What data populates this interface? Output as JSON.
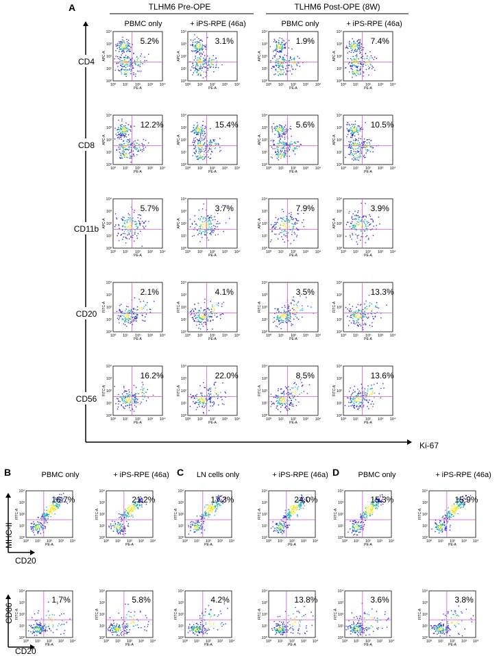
{
  "figure": {
    "panel_labels": [
      "A",
      "B",
      "C",
      "D"
    ],
    "panel_a": {
      "group_headers": [
        "TLHM6 Pre-OPE",
        "TLHM6 Post-OPE (8W)"
      ],
      "column_headers": [
        "PBMC only",
        "+ iPS-RPE (46a)",
        "PBMC only",
        "+ iPS-RPE (46a)"
      ],
      "row_labels": [
        "CD4",
        "CD8",
        "CD11b",
        "CD20",
        "CD56"
      ],
      "x_axis_marker": "Ki-67"
    },
    "panel_b": {
      "column_headers": [
        "PBMC only",
        "+ iPS-RPE (46a)"
      ],
      "y_marker_top": "MHC-II",
      "y_marker_bottom": "CD86",
      "x_marker": "CD20"
    },
    "panel_c": {
      "column_headers": [
        "LN cells only",
        "+ iPS-RPE (46a)"
      ]
    },
    "panel_d": {
      "column_headers": [
        "PBMC only",
        "+ iPS-RPE (46a)"
      ]
    },
    "tick_labels": [
      "10⁰",
      "10¹",
      "10²",
      "10³",
      "10⁴"
    ],
    "x_channel": "PE-A",
    "colors": {
      "gate": "#d94fd9",
      "dots_low": "#2b2bd9",
      "dots_mid": "#19b3b3",
      "dots_high": "#f2e61a"
    }
  },
  "chart_data": [
    {
      "type": "scatter",
      "panel": "A",
      "row": "CD4",
      "column": "PBMC only",
      "group": "TLHM6 Pre-OPE",
      "ylabel": "APC-A",
      "xlabel": "PE-A",
      "upper_right_percent": "5.2%"
    },
    {
      "type": "scatter",
      "panel": "A",
      "row": "CD4",
      "column": "+ iPS-RPE (46a)",
      "group": "TLHM6 Pre-OPE",
      "ylabel": "APC-A",
      "xlabel": "PE-A",
      "upper_right_percent": "3.1%"
    },
    {
      "type": "scatter",
      "panel": "A",
      "row": "CD4",
      "column": "PBMC only",
      "group": "TLHM6 Post-OPE (8W)",
      "ylabel": "APC-A",
      "xlabel": "PE-A",
      "upper_right_percent": "1.9%"
    },
    {
      "type": "scatter",
      "panel": "A",
      "row": "CD4",
      "column": "+ iPS-RPE (46a)",
      "group": "TLHM6 Post-OPE (8W)",
      "ylabel": "APC-A",
      "xlabel": "PE-A",
      "upper_right_percent": "7.4%"
    },
    {
      "type": "scatter",
      "panel": "A",
      "row": "CD8",
      "column": "PBMC only",
      "group": "TLHM6 Pre-OPE",
      "ylabel": "APC-A",
      "xlabel": "PE-A",
      "upper_right_percent": "12.2%"
    },
    {
      "type": "scatter",
      "panel": "A",
      "row": "CD8",
      "column": "+ iPS-RPE (46a)",
      "group": "TLHM6 Pre-OPE",
      "ylabel": "APC-A",
      "xlabel": "PE-A",
      "upper_right_percent": "15.4%"
    },
    {
      "type": "scatter",
      "panel": "A",
      "row": "CD8",
      "column": "PBMC only",
      "group": "TLHM6 Post-OPE (8W)",
      "ylabel": "APC-A",
      "xlabel": "PE-A",
      "upper_right_percent": "5.6%"
    },
    {
      "type": "scatter",
      "panel": "A",
      "row": "CD8",
      "column": "+ iPS-RPE (46a)",
      "group": "TLHM6 Post-OPE (8W)",
      "ylabel": "APC-A",
      "xlabel": "PE-A",
      "upper_right_percent": "10.5%"
    },
    {
      "type": "scatter",
      "panel": "A",
      "row": "CD11b",
      "column": "PBMC only",
      "group": "TLHM6 Pre-OPE",
      "ylabel": "APC-A",
      "xlabel": "PE-A",
      "upper_right_percent": "5.7%"
    },
    {
      "type": "scatter",
      "panel": "A",
      "row": "CD11b",
      "column": "+ iPS-RPE (46a)",
      "group": "TLHM6 Pre-OPE",
      "ylabel": "APC-A",
      "xlabel": "PE-A",
      "upper_right_percent": "3.7%"
    },
    {
      "type": "scatter",
      "panel": "A",
      "row": "CD11b",
      "column": "PBMC only",
      "group": "TLHM6 Post-OPE (8W)",
      "ylabel": "APC-A",
      "xlabel": "PE-A",
      "upper_right_percent": "7.9%"
    },
    {
      "type": "scatter",
      "panel": "A",
      "row": "CD11b",
      "column": "+ iPS-RPE (46a)",
      "group": "TLHM6 Post-OPE (8W)",
      "ylabel": "APC-A",
      "xlabel": "PE-A",
      "upper_right_percent": "3.9%"
    },
    {
      "type": "scatter",
      "panel": "A",
      "row": "CD20",
      "column": "PBMC only",
      "group": "TLHM6 Pre-OPE",
      "ylabel": "FITC-A",
      "xlabel": "PE-A",
      "upper_right_percent": "2.1%"
    },
    {
      "type": "scatter",
      "panel": "A",
      "row": "CD20",
      "column": "+ iPS-RPE (46a)",
      "group": "TLHM6 Pre-OPE",
      "ylabel": "FITC-A",
      "xlabel": "PE-A",
      "upper_right_percent": "4.1%"
    },
    {
      "type": "scatter",
      "panel": "A",
      "row": "CD20",
      "column": "PBMC only",
      "group": "TLHM6 Post-OPE (8W)",
      "ylabel": "FITC-A",
      "xlabel": "PE-A",
      "upper_right_percent": "3.5%"
    },
    {
      "type": "scatter",
      "panel": "A",
      "row": "CD20",
      "column": "+ iPS-RPE (46a)",
      "group": "TLHM6 Post-OPE (8W)",
      "ylabel": "FITC-A",
      "xlabel": "PE-A",
      "upper_right_percent": "13.3%"
    },
    {
      "type": "scatter",
      "panel": "A",
      "row": "CD56",
      "column": "PBMC only",
      "group": "TLHM6 Pre-OPE",
      "ylabel": "FITC-A",
      "xlabel": "PE-A",
      "upper_right_percent": "16.2%"
    },
    {
      "type": "scatter",
      "panel": "A",
      "row": "CD56",
      "column": "+ iPS-RPE (46a)",
      "group": "TLHM6 Pre-OPE",
      "ylabel": "FITC-A",
      "xlabel": "PE-A",
      "upper_right_percent": "22.0%"
    },
    {
      "type": "scatter",
      "panel": "A",
      "row": "CD56",
      "column": "PBMC only",
      "group": "TLHM6 Post-OPE (8W)",
      "ylabel": "FITC-A",
      "xlabel": "PE-A",
      "upper_right_percent": "8.5%"
    },
    {
      "type": "scatter",
      "panel": "A",
      "row": "CD56",
      "column": "+ iPS-RPE (46a)",
      "group": "TLHM6 Post-OPE (8W)",
      "ylabel": "FITC-A",
      "xlabel": "PE-A",
      "upper_right_percent": "13.6%"
    },
    {
      "type": "scatter",
      "panel": "B",
      "row": "MHC-II",
      "column": "PBMC only",
      "ylabel": "FITC-A",
      "xlabel": "PE-A",
      "upper_right_percent": "16.7%"
    },
    {
      "type": "scatter",
      "panel": "B",
      "row": "MHC-II",
      "column": "+ iPS-RPE (46a)",
      "ylabel": "FITC-A",
      "xlabel": "PE-A",
      "upper_right_percent": "21.2%"
    },
    {
      "type": "scatter",
      "panel": "C",
      "row": "MHC-II",
      "column": "LN cells only",
      "ylabel": "FITC-A",
      "xlabel": "PE-A",
      "upper_right_percent": "17.3%"
    },
    {
      "type": "scatter",
      "panel": "C",
      "row": "MHC-II",
      "column": "+ iPS-RPE (46a)",
      "ylabel": "FITC-A",
      "xlabel": "PE-A",
      "upper_right_percent": "24.0%"
    },
    {
      "type": "scatter",
      "panel": "D",
      "row": "MHC-II",
      "column": "PBMC only",
      "ylabel": "FITC-A",
      "xlabel": "PE-A",
      "upper_right_percent": "15.3%"
    },
    {
      "type": "scatter",
      "panel": "D",
      "row": "MHC-II",
      "column": "+ iPS-RPE (46a)",
      "ylabel": "FITC-A",
      "xlabel": "PE-A",
      "upper_right_percent": "15.9%"
    },
    {
      "type": "scatter",
      "panel": "B",
      "row": "CD86",
      "column": "PBMC only",
      "ylabel": "FITC-A",
      "xlabel": "PE-A",
      "upper_right_percent": "1.7%"
    },
    {
      "type": "scatter",
      "panel": "B",
      "row": "CD86",
      "column": "+ iPS-RPE (46a)",
      "ylabel": "FITC-A",
      "xlabel": "PE-A",
      "upper_right_percent": "5.8%"
    },
    {
      "type": "scatter",
      "panel": "C",
      "row": "CD86",
      "column": "LN cells only",
      "ylabel": "FITC-A",
      "xlabel": "PE-A",
      "upper_right_percent": "4.2%"
    },
    {
      "type": "scatter",
      "panel": "C",
      "row": "CD86",
      "column": "+ iPS-RPE (46a)",
      "ylabel": "FITC-A",
      "xlabel": "PE-A",
      "upper_right_percent": "13.8%"
    },
    {
      "type": "scatter",
      "panel": "D",
      "row": "CD86",
      "column": "PBMC only",
      "ylabel": "FITC-A",
      "xlabel": "PE-A",
      "upper_right_percent": "3.6%"
    },
    {
      "type": "scatter",
      "panel": "D",
      "row": "CD86",
      "column": "+ iPS-RPE (46a)",
      "ylabel": "FITC-A",
      "xlabel": "PE-A",
      "upper_right_percent": "3.8%"
    }
  ]
}
